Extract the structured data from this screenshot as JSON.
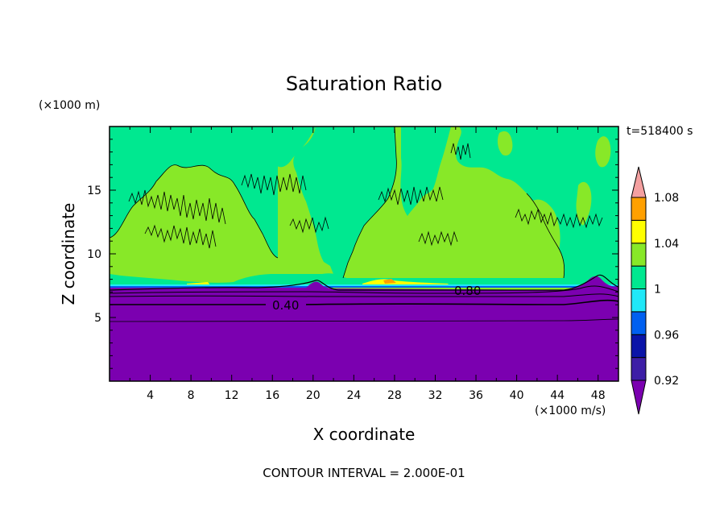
{
  "chart_data": {
    "type": "heatmap",
    "title": "Saturation Ratio",
    "xlabel": "X coordinate",
    "ylabel": "Z coordinate",
    "x_unit": "(×1000 m/s)",
    "y_unit": "(×1000 m)",
    "time_label": "t=518400 s",
    "footer": "CONTOUR INTERVAL = 2.000E-01",
    "xlim": [
      0,
      50
    ],
    "ylim": [
      0,
      20
    ],
    "x_ticks": [
      4,
      8,
      12,
      16,
      20,
      24,
      28,
      32,
      36,
      40,
      44,
      48
    ],
    "y_ticks": [
      5,
      10,
      15
    ],
    "grid": false,
    "legend_position": "right",
    "colorbar": {
      "levels": [
        0.92,
        0.94,
        0.96,
        0.98,
        1.0,
        1.02,
        1.04,
        1.06,
        1.08
      ],
      "labels": [
        "0.92",
        "0.96",
        "1",
        "1.04",
        "1.08"
      ],
      "colors": [
        "#7b00b0",
        "#3d1ea6",
        "#0a14a8",
        "#0060f0",
        "#20e8f8",
        "#00e890",
        "#88e828",
        "#ffff00",
        "#ffa000",
        "#ff3010",
        "#f4a0a0"
      ]
    },
    "contour_labels": [
      {
        "text": "0.40",
        "x": 17.5,
        "y": 6.0
      },
      {
        "text": "0.80",
        "x": 35.0,
        "y": 7.2
      }
    ],
    "regions": [
      {
        "level": "below 0.92",
        "z_range": [
          0,
          7.2
        ]
      },
      {
        "level": "1.00-1.02",
        "z_range": [
          7.4,
          20
        ]
      },
      {
        "level": "1.02-1.04",
        "z_range": [
          7.5,
          20
        ]
      },
      {
        "level": "1.04-1.06",
        "z_range": [
          7.4,
          7.9
        ]
      }
    ]
  }
}
